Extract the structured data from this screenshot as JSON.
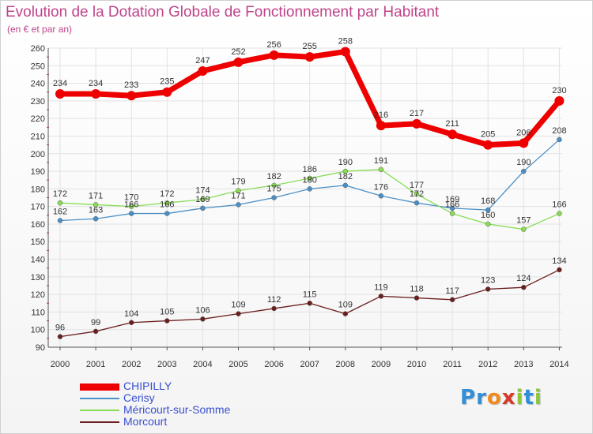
{
  "title": "Evolution de la Dotation Globale de Fonctionnement par Habitant",
  "subtitle": "(en € et par an)",
  "logo": {
    "letters": [
      "P",
      "r",
      "o",
      "x",
      "i",
      "t",
      "i"
    ],
    "colors": [
      "#2f8fd8",
      "#2f8fd8",
      "#f08a1c",
      "#d63a2a",
      "#8cc63f",
      "#2f8fd8",
      "#8cc63f"
    ]
  },
  "chart_data": {
    "type": "line",
    "title": "Evolution de la Dotation Globale de Fonctionnement par Habitant",
    "subtitle": "(en € et par an)",
    "categories": [
      "2000",
      "2001",
      "2002",
      "2003",
      "2004",
      "2005",
      "2006",
      "2007",
      "2008",
      "2009",
      "2010",
      "2011",
      "2012",
      "2013",
      "2014"
    ],
    "ylim": [
      90,
      260
    ],
    "yticks": [
      90,
      100,
      110,
      120,
      130,
      140,
      150,
      160,
      170,
      180,
      190,
      200,
      210,
      220,
      230,
      240,
      250,
      260
    ],
    "grid": true,
    "legend_position": "bottom-left",
    "series": [
      {
        "name": "CHIPILLY",
        "color": "#ee0000",
        "values": [
          234,
          234,
          233,
          235,
          247,
          252,
          256,
          255,
          258,
          216,
          217,
          211,
          205,
          206,
          230
        ]
      },
      {
        "name": "Cerisy",
        "color": "#4a90c8",
        "values": [
          162,
          163,
          166,
          166,
          169,
          171,
          175,
          180,
          182,
          176,
          172,
          169,
          168,
          190,
          208
        ]
      },
      {
        "name": "Méricourt-sur-Somme",
        "color": "#88dd55",
        "values": [
          172,
          171,
          170,
          172,
          174,
          179,
          182,
          186,
          190,
          191,
          177,
          166,
          160,
          157,
          166
        ]
      },
      {
        "name": "Morcourt",
        "color": "#6b1e1e",
        "values": [
          96,
          99,
          104,
          105,
          106,
          109,
          112,
          115,
          109,
          119,
          118,
          117,
          123,
          124,
          134
        ]
      }
    ]
  }
}
